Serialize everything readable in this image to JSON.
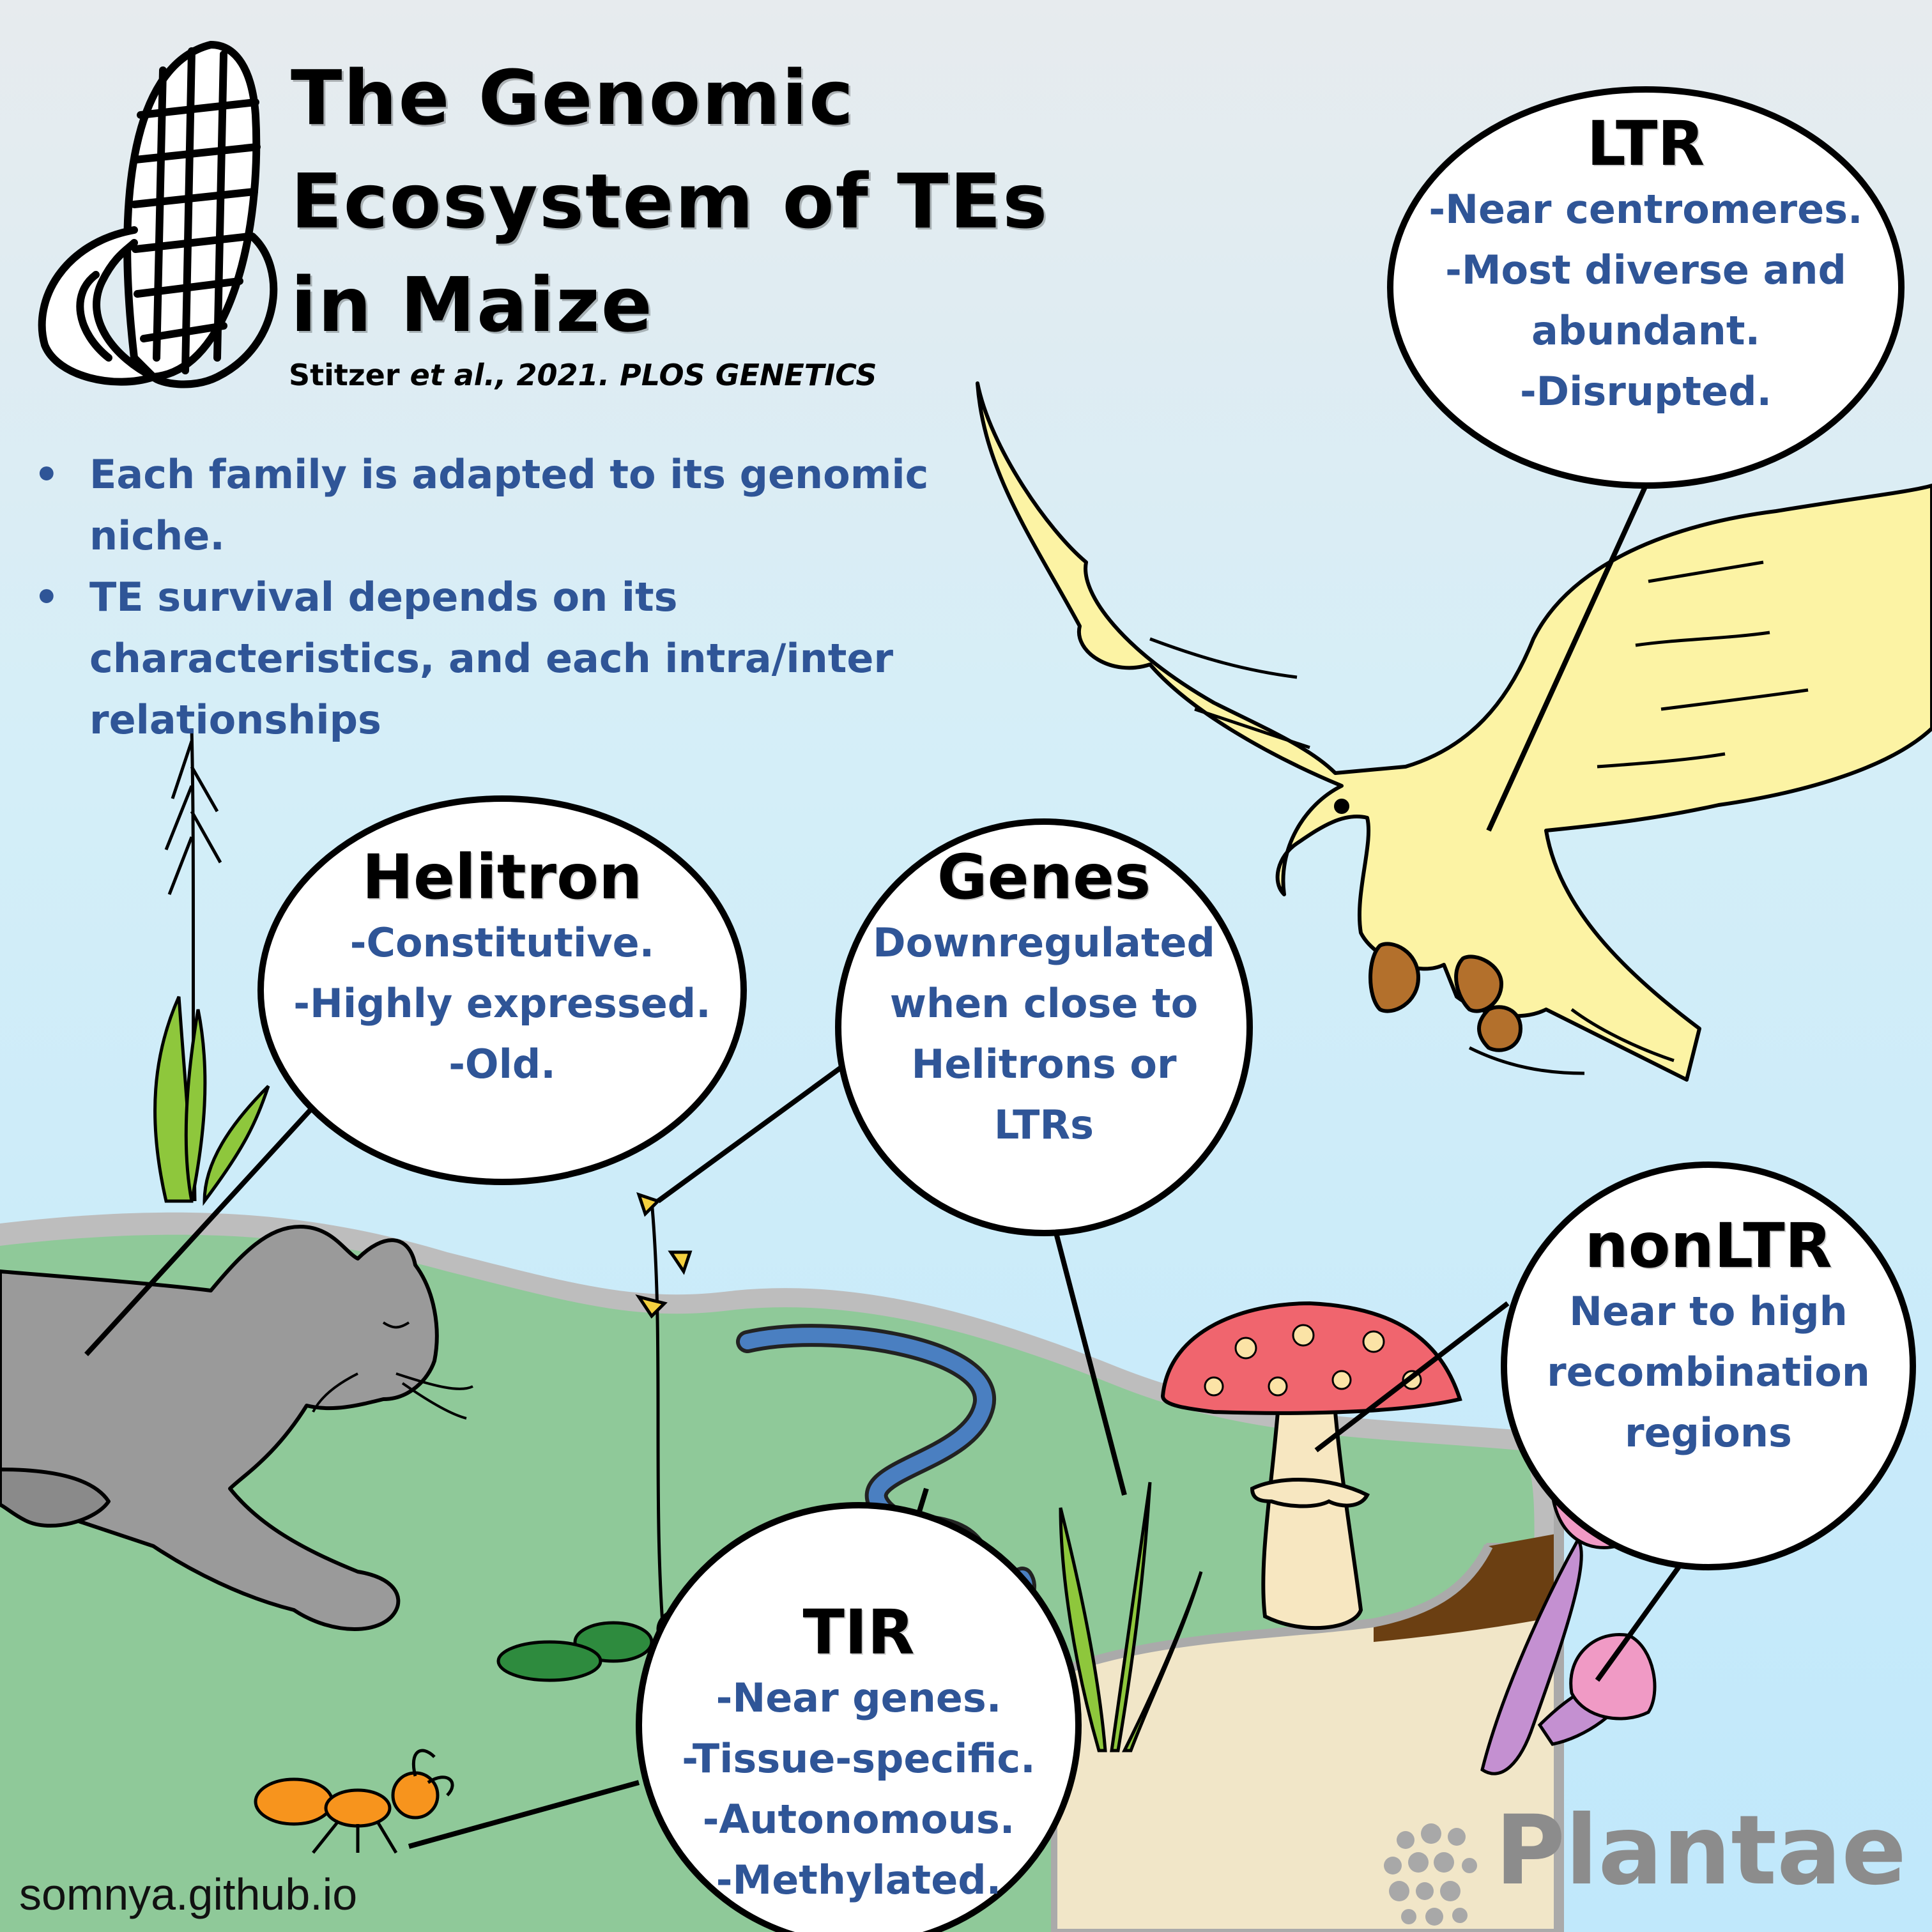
{
  "title": {
    "line1": "The Genomic",
    "line2": "Ecosystem of TEs",
    "line3": "in Maize"
  },
  "citation": {
    "authors": "Stitzer",
    "rest": "et al., 2021. PLOS GENETICS"
  },
  "bullets": [
    "Each family is adapted to its genomic niche.",
    "TE survival depends on its characteristics, and each intra/inter relationships"
  ],
  "bubbles": {
    "ltr": {
      "title": "LTR",
      "lines": [
        "-Near centromeres.",
        "-Most diverse and",
        "abundant.",
        "-Disrupted."
      ],
      "animal": "eagle"
    },
    "helitron": {
      "title": "Helitron",
      "lines": [
        "-Constitutive.",
        "-Highly expressed.",
        "-Old."
      ],
      "animal": "panther"
    },
    "genes": {
      "title": "Genes",
      "lines": [
        "Downregulated",
        "when close to",
        "Helitrons or",
        "LTRs"
      ],
      "animal": "flowering plant"
    },
    "nonltr": {
      "title": "nonLTR",
      "lines": [
        "Near to high",
        "recombination",
        "regions"
      ],
      "animal": "pink mushrooms"
    },
    "tir": {
      "title": "TIR",
      "lines": [
        "-Near genes.",
        "-Tissue-specific.",
        "-Autonomous.",
        "-Methylated."
      ],
      "animal": "ant"
    }
  },
  "footer": {
    "url": "somnya.github.io"
  },
  "logo": {
    "text": "Plantae"
  },
  "colors": {
    "sky_top": "#e6ebee",
    "sky_bottom": "#c3e9fa",
    "grass": "#8fc999",
    "text_blue": "#2f5597",
    "eagle": "#fcf3a4",
    "panther": "#9a9a9a",
    "river": "#4a7fc1",
    "mushroom_cap": "#f0656e"
  }
}
